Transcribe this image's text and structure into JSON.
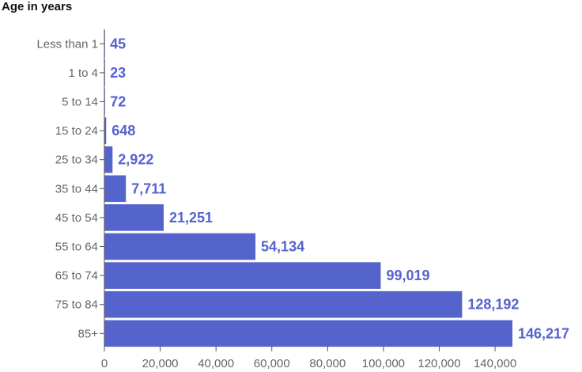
{
  "chart_data": {
    "type": "bar",
    "orientation": "horizontal",
    "title": "Age in years",
    "xlabel": "",
    "ylabel": "",
    "categories": [
      "Less than 1",
      "1 to 4",
      "5 to 14",
      "15 to 24",
      "25 to 34",
      "35 to 44",
      "45 to 54",
      "55 to 64",
      "65 to 74",
      "75 to 84",
      "85+"
    ],
    "values": [
      45,
      23,
      72,
      648,
      2922,
      7711,
      21251,
      54134,
      99019,
      128192,
      146217
    ],
    "value_labels": [
      "45",
      "23",
      "72",
      "648",
      "2,922",
      "7,711",
      "21,251",
      "54,134",
      "99,019",
      "128,192",
      "146,217"
    ],
    "xlim": [
      0,
      146217
    ],
    "x_ticks": [
      0,
      20000,
      40000,
      60000,
      80000,
      100000,
      120000,
      140000
    ],
    "x_tick_labels": [
      "0",
      "20,000",
      "40,000",
      "60,000",
      "80,000",
      "100,000",
      "120,000",
      "140,000"
    ],
    "grid": false,
    "legend": "none",
    "colors": {
      "bar": "#5563cc",
      "label": "#5563cc",
      "axis": "#555555",
      "text": "#666666"
    }
  }
}
